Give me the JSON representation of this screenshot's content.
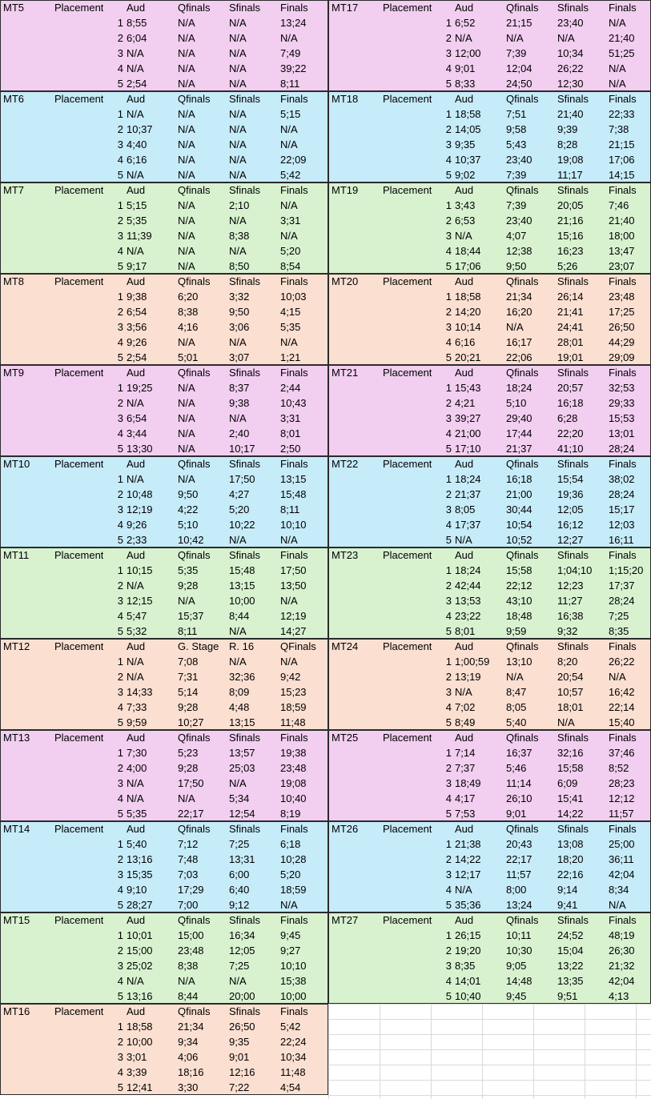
{
  "sheet": {
    "blocks": [
      {
        "side": "L",
        "title": "MT5",
        "color": "#f2cef0",
        "cols": [
          "Placement",
          "Aud",
          "Qfinals",
          "Sfinals",
          "Finals"
        ],
        "rows": [
          [
            "1",
            "8;55",
            "N/A",
            "N/A",
            "13;24"
          ],
          [
            "2",
            "6;04",
            "N/A",
            "N/A",
            "N/A"
          ],
          [
            "3",
            "N/A",
            "N/A",
            "N/A",
            "7;49"
          ],
          [
            "4",
            "N/A",
            "N/A",
            "N/A",
            "39;22"
          ],
          [
            "5",
            "2;54",
            "N/A",
            "N/A",
            "8;11"
          ]
        ]
      },
      {
        "side": "L",
        "title": "MT6",
        "color": "#c6ebf9",
        "cols": [
          "Placement",
          "Aud",
          "Qfinals",
          "Sfinals",
          "Finals"
        ],
        "rows": [
          [
            "1",
            "N/A",
            "N/A",
            "N/A",
            "5;15"
          ],
          [
            "2",
            "10;37",
            "N/A",
            "N/A",
            "N/A"
          ],
          [
            "3",
            "4;40",
            "N/A",
            "N/A",
            "N/A"
          ],
          [
            "4",
            "6;16",
            "N/A",
            "N/A",
            "22;09"
          ],
          [
            "5",
            "N/A",
            "N/A",
            "N/A",
            "5;42"
          ]
        ]
      },
      {
        "side": "L",
        "title": "MT7",
        "color": "#d8f2d0",
        "cols": [
          "Placement",
          "Aud",
          "Qfinals",
          "Sfinals",
          "Finals"
        ],
        "rows": [
          [
            "1",
            "5;15",
            "N/A",
            "2;10",
            "N/A"
          ],
          [
            "2",
            "5;35",
            "N/A",
            "N/A",
            "3;31"
          ],
          [
            "3",
            "11;39",
            "N/A",
            "8;38",
            "N/A"
          ],
          [
            "4",
            "N/A",
            "N/A",
            "N/A",
            "5;20"
          ],
          [
            "5",
            "9;17",
            "N/A",
            "8;50",
            "8;54"
          ]
        ]
      },
      {
        "side": "L",
        "title": "MT8",
        "color": "#fbdfd1",
        "cols": [
          "Placement",
          "Aud",
          "Qfinals",
          "Sfinals",
          "Finals"
        ],
        "rows": [
          [
            "1",
            "9;38",
            "6;20",
            "3;32",
            "10;03"
          ],
          [
            "2",
            "6;54",
            "8;38",
            "9;50",
            "4;15"
          ],
          [
            "3",
            "3;56",
            "4;16",
            "3;06",
            "5;35"
          ],
          [
            "4",
            "9;26",
            "N/A",
            "N/A",
            "N/A"
          ],
          [
            "5",
            "2;54",
            "5;01",
            "3;07",
            "1;21"
          ]
        ]
      },
      {
        "side": "L",
        "title": "MT9",
        "color": "#f2cef0",
        "cols": [
          "Placement",
          "Aud",
          "Qfinals",
          "Sfinals",
          "Finals"
        ],
        "rows": [
          [
            "1",
            "19;25",
            "N/A",
            "8;37",
            "2;44"
          ],
          [
            "2",
            "N/A",
            "N/A",
            "9;38",
            "10;43"
          ],
          [
            "3",
            "6;54",
            "N/A",
            "N/A",
            "3;31"
          ],
          [
            "4",
            "3;44",
            "N/A",
            "2;40",
            "8;01"
          ],
          [
            "5",
            "13;30",
            "N/A",
            "10;17",
            "2;50"
          ]
        ]
      },
      {
        "side": "L",
        "title": "MT10",
        "color": "#c6ebf9",
        "cols": [
          "Placement",
          "Aud",
          "Qfinals",
          "Sfinals",
          "Finals"
        ],
        "rows": [
          [
            "1",
            "N/A",
            "N/A",
            "17;50",
            "13;15"
          ],
          [
            "2",
            "10;48",
            "9;50",
            "4;27",
            "15;48"
          ],
          [
            "3",
            "12;19",
            "4;22",
            "5;20",
            "8;11"
          ],
          [
            "4",
            "9;26",
            "5;10",
            "10;22",
            "10;10"
          ],
          [
            "5",
            "2;33",
            "10;42",
            "N/A",
            "N/A"
          ]
        ]
      },
      {
        "side": "L",
        "title": "MT11",
        "color": "#d8f2d0",
        "cols": [
          "Placement",
          "Aud",
          "Qfinals",
          "Sfinals",
          "Finals"
        ],
        "rows": [
          [
            "1",
            "10;15",
            "5;35",
            "15;48",
            "17;50"
          ],
          [
            "2",
            "N/A",
            "9;28",
            "13;15",
            "13;50"
          ],
          [
            "3",
            "12;15",
            "N/A",
            "10;00",
            "N/A"
          ],
          [
            "4",
            "5;47",
            "15;37",
            "8;44",
            "12;19"
          ],
          [
            "5",
            "5;32",
            "8;11",
            "N/A",
            "14;27"
          ]
        ]
      },
      {
        "side": "L",
        "title": "MT12",
        "color": "#fbdfd1",
        "cols": [
          "Placement",
          "Aud",
          "G. Stage",
          "R. 16",
          "QFinals"
        ],
        "rows": [
          [
            "1",
            "N/A",
            "7;08",
            "N/A",
            "N/A"
          ],
          [
            "2",
            "N/A",
            "7;31",
            "32;36",
            "9;42"
          ],
          [
            "3",
            "14;33",
            "5;14",
            "8;09",
            "15;23"
          ],
          [
            "4",
            "7;33",
            "9;28",
            "4;48",
            "18;59"
          ],
          [
            "5",
            "9;59",
            "10;27",
            "13;15",
            "11;48"
          ]
        ]
      },
      {
        "side": "L",
        "title": "MT13",
        "color": "#f2cef0",
        "cols": [
          "Placement",
          "Aud",
          "Qfinals",
          "Sfinals",
          "Finals"
        ],
        "rows": [
          [
            "1",
            "7;30",
            "5;23",
            "13;57",
            "19;38"
          ],
          [
            "2",
            "4;00",
            "9;28",
            "25;03",
            "23;48"
          ],
          [
            "3",
            "N/A",
            "17;50",
            "N/A",
            "19;08"
          ],
          [
            "4",
            "N/A",
            "N/A",
            "5;34",
            "10;40"
          ],
          [
            "5",
            "5;35",
            "22;17",
            "12;54",
            "8;19"
          ]
        ]
      },
      {
        "side": "L",
        "title": "MT14",
        "color": "#c6ebf9",
        "cols": [
          "Placement",
          "Aud",
          "Qfinals",
          "Sfinals",
          "Finals"
        ],
        "rows": [
          [
            "1",
            "5;40",
            "7;12",
            "7;25",
            "6;18"
          ],
          [
            "2",
            "13;16",
            "7;48",
            "13;31",
            "10;28"
          ],
          [
            "3",
            "15;35",
            "7;03",
            "6;00",
            "5;20"
          ],
          [
            "4",
            "9;10",
            "17;29",
            "6;40",
            "18;59"
          ],
          [
            "5",
            "28;27",
            "7;00",
            "9;12",
            "N/A"
          ]
        ]
      },
      {
        "side": "L",
        "title": "MT15",
        "color": "#d8f2d0",
        "cols": [
          "Placement",
          "Aud",
          "Qfinals",
          "Sfinals",
          "Finals"
        ],
        "rows": [
          [
            "1",
            "10;01",
            "15;00",
            "16;34",
            "9;45"
          ],
          [
            "2",
            "15;00",
            "23;48",
            "12;05",
            "9;27"
          ],
          [
            "3",
            "25;02",
            "8;38",
            "7;25",
            "10;10"
          ],
          [
            "4",
            "N/A",
            "N/A",
            "N/A",
            "15;38"
          ],
          [
            "5",
            "13;16",
            "8;44",
            "20;00",
            "10;00"
          ]
        ]
      },
      {
        "side": "L",
        "title": "MT16",
        "color": "#fbdfd1",
        "cols": [
          "Placement",
          "Aud",
          "Qfinals",
          "Sfinals",
          "Finals"
        ],
        "rows": [
          [
            "1",
            "18;58",
            "21;34",
            "26;50",
            "5;42"
          ],
          [
            "2",
            "10;00",
            "9;34",
            "9;35",
            "22;24"
          ],
          [
            "3",
            "3;01",
            "4;06",
            "9;01",
            "10;34"
          ],
          [
            "4",
            "3;39",
            "18;16",
            "12;16",
            "11;48"
          ],
          [
            "5",
            "12;41",
            "3;30",
            "7;22",
            "4;54"
          ]
        ]
      },
      {
        "side": "R",
        "title": "MT17",
        "color": "#f2cef0",
        "cols": [
          "Placement",
          "Aud",
          "Qfinals",
          "Sfinals",
          "Finals"
        ],
        "rows": [
          [
            "1",
            "6;52",
            "21;15",
            "23;40",
            "N/A"
          ],
          [
            "2",
            "N/A",
            "N/A",
            "N/A",
            "21;40"
          ],
          [
            "3",
            "12;00",
            "7;39",
            "10;34",
            "51;25"
          ],
          [
            "4",
            "9;01",
            "12;04",
            "26;22",
            "N/A"
          ],
          [
            "5",
            "8;33",
            "24;50",
            "12;30",
            "N/A"
          ]
        ]
      },
      {
        "side": "R",
        "title": "MT18",
        "color": "#c6ebf9",
        "cols": [
          "Placement",
          "Aud",
          "Qfinals",
          "Sfinals",
          "Finals"
        ],
        "rows": [
          [
            "1",
            "18;58",
            "7;51",
            "21;40",
            "22;33"
          ],
          [
            "2",
            "14;05",
            "9;58",
            "9;39",
            "7;38"
          ],
          [
            "3",
            "9;35",
            "5;43",
            "8;28",
            "21;15"
          ],
          [
            "4",
            "10;37",
            "23;40",
            "19;08",
            "17;06"
          ],
          [
            "5",
            "9;02",
            "7;39",
            "11;17",
            "14;15"
          ]
        ]
      },
      {
        "side": "R",
        "title": "MT19",
        "color": "#d8f2d0",
        "cols": [
          "Placement",
          "Aud",
          "Qfinals",
          "Sfinals",
          "Finals"
        ],
        "rows": [
          [
            "1",
            "3;43",
            "7;39",
            "20;05",
            "7;46"
          ],
          [
            "2",
            "6;53",
            "23;40",
            "21;16",
            "21;40"
          ],
          [
            "3",
            "N/A",
            "4;07",
            "15;16",
            "18;00"
          ],
          [
            "4",
            "18;44",
            "12;38",
            "16;23",
            "13;47"
          ],
          [
            "5",
            "17;06",
            "9;50",
            "5;26",
            "23;07"
          ]
        ]
      },
      {
        "side": "R",
        "title": "MT20",
        "color": "#fbdfd1",
        "cols": [
          "Placement",
          "Aud",
          "Qfinals",
          "Sfinals",
          "Finals"
        ],
        "rows": [
          [
            "1",
            "18;58",
            "21;34",
            "26;14",
            "23;48"
          ],
          [
            "2",
            "14;20",
            "16;20",
            "21;41",
            "17;25"
          ],
          [
            "3",
            "10;14",
            "N/A",
            "24;41",
            "26;50"
          ],
          [
            "4",
            "6;16",
            "16;17",
            "28;01",
            "44;29"
          ],
          [
            "5",
            "20;21",
            "22;06",
            "19;01",
            "29;09"
          ]
        ]
      },
      {
        "side": "R",
        "title": "MT21",
        "color": "#f2cef0",
        "cols": [
          "Placement",
          "Aud",
          "Qfinals",
          "Sfinals",
          "Finals"
        ],
        "rows": [
          [
            "1",
            "15;43",
            "18;24",
            "20;57",
            "32;53"
          ],
          [
            "2",
            "4;21",
            "5;10",
            "16;18",
            "29;33"
          ],
          [
            "3",
            "39;27",
            "29;40",
            "6;28",
            "15;53"
          ],
          [
            "4",
            "21;00",
            "17;44",
            "22;20",
            "13;01"
          ],
          [
            "5",
            "17;10",
            "21;37",
            "41;10",
            "28;24"
          ]
        ]
      },
      {
        "side": "R",
        "title": "MT22",
        "color": "#c6ebf9",
        "cols": [
          "Placement",
          "Aud",
          "Qfinals",
          "Sfinals",
          "Finals"
        ],
        "rows": [
          [
            "1",
            "18;24",
            "16;18",
            "15;54",
            "38;02"
          ],
          [
            "2",
            "21;37",
            "21;00",
            "19;36",
            "28;24"
          ],
          [
            "3",
            "8;05",
            "30;44",
            "12;05",
            "15;17"
          ],
          [
            "4",
            "17;37",
            "10;54",
            "16;12",
            "12;03"
          ],
          [
            "5",
            "N/A",
            "10;52",
            "12;27",
            "16;11"
          ]
        ]
      },
      {
        "side": "R",
        "title": "MT23",
        "color": "#d8f2d0",
        "cols": [
          "Placement",
          "Aud",
          "Qfinals",
          "Sfinals",
          "Finals"
        ],
        "rows": [
          [
            "1",
            "18;24",
            "15;58",
            "1;04;10",
            "1;15;20"
          ],
          [
            "2",
            "42;44",
            "22;12",
            "12;23",
            "17;37"
          ],
          [
            "3",
            "13;53",
            "43;10",
            "11;27",
            "28;24"
          ],
          [
            "4",
            "23;22",
            "18;48",
            "16;38",
            "7;25"
          ],
          [
            "5",
            "8;01",
            "9;59",
            "9;32",
            "8;35"
          ]
        ]
      },
      {
        "side": "R",
        "title": "MT24",
        "color": "#fbdfd1",
        "cols": [
          "Placement",
          "Aud",
          "Qfinals",
          "Sfinals",
          "Finals"
        ],
        "rows": [
          [
            "1",
            "1;00;59",
            "13;10",
            "8;20",
            "26;22"
          ],
          [
            "2",
            "13;19",
            "N/A",
            "20;54",
            "N/A"
          ],
          [
            "3",
            "N/A",
            "8;47",
            "10;57",
            "16;42"
          ],
          [
            "4",
            "7;02",
            "8;05",
            "18;01",
            "22;14"
          ],
          [
            "5",
            "8;49",
            "5;40",
            "N/A",
            "15;40"
          ]
        ]
      },
      {
        "side": "R",
        "title": "MT25",
        "color": "#f2cef0",
        "cols": [
          "Placement",
          "Aud",
          "Qfinals",
          "Sfinals",
          "Finals"
        ],
        "rows": [
          [
            "1",
            "7;14",
            "16;37",
            "32;16",
            "37;46"
          ],
          [
            "2",
            "7;37",
            "5;46",
            "15;58",
            "8;52"
          ],
          [
            "3",
            "18;49",
            "11;14",
            "6;09",
            "28;23"
          ],
          [
            "4",
            "4;17",
            "26;10",
            "15;41",
            "12;12"
          ],
          [
            "5",
            "7;53",
            "9;01",
            "14;22",
            "11;57"
          ]
        ]
      },
      {
        "side": "R",
        "title": "MT26",
        "color": "#c6ebf9",
        "cols": [
          "Placement",
          "Aud",
          "Qfinals",
          "Sfinals",
          "Finals"
        ],
        "rows": [
          [
            "1",
            "21;38",
            "20;43",
            "13;08",
            "25;00"
          ],
          [
            "2",
            "14;22",
            "22;17",
            "18;20",
            "36;11"
          ],
          [
            "3",
            "12;17",
            "11;57",
            "22;16",
            "42;04"
          ],
          [
            "4",
            "N/A",
            "8;00",
            "9;14",
            "8;34"
          ],
          [
            "5",
            "35;36",
            "13;24",
            "9;41",
            "N/A"
          ]
        ]
      },
      {
        "side": "R",
        "title": "MT27",
        "color": "#d8f2d0",
        "cols": [
          "Placement",
          "Aud",
          "Qfinals",
          "Sfinals",
          "Finals"
        ],
        "rows": [
          [
            "1",
            "26;15",
            "10;11",
            "24;52",
            "48;19"
          ],
          [
            "2",
            "19;20",
            "10;30",
            "15;04",
            "26;30"
          ],
          [
            "3",
            "8;35",
            "9;05",
            "13;22",
            "21;32"
          ],
          [
            "4",
            "14;01",
            "14;48",
            "13;35",
            "42;04"
          ],
          [
            "5",
            "10;40",
            "9;45",
            "9;51",
            "4;13"
          ]
        ]
      }
    ]
  }
}
